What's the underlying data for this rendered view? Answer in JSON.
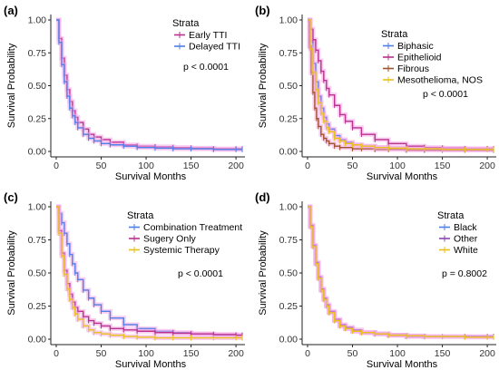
{
  "colors": {
    "blue": "#4f7fe8",
    "magenta": "#b8328e",
    "yellow": "#e8c21a",
    "brown": "#a0522d",
    "purple": "#8a44b0",
    "censor_tint": "#f4a6e6",
    "axis": "#222222"
  },
  "chart_data": [
    {
      "panel_label": "(a)",
      "type": "line",
      "xlabel": "Survival Months",
      "ylabel": "Survival Probability",
      "xlim": [
        0,
        210
      ],
      "ylim": [
        0,
        1
      ],
      "x_ticks": [
        "0",
        "50",
        "100",
        "150",
        "200"
      ],
      "y_ticks": [
        "0.00",
        "0.25",
        "0.50",
        "0.75",
        "1.00"
      ],
      "legend_title": "Strata",
      "legend_position": "top-right",
      "p_value": "p < 0.0001",
      "series": [
        {
          "name": "Early TTI",
          "color": "#b8328e",
          "x": [
            0,
            3,
            6,
            9,
            12,
            15,
            18,
            21,
            24,
            30,
            36,
            42,
            50,
            60,
            75,
            90,
            110,
            130,
            150,
            175,
            200,
            207
          ],
          "y": [
            1.0,
            0.86,
            0.71,
            0.58,
            0.47,
            0.38,
            0.31,
            0.26,
            0.22,
            0.17,
            0.13,
            0.11,
            0.09,
            0.07,
            0.05,
            0.04,
            0.035,
            0.03,
            0.025,
            0.02,
            0.02,
            0.02
          ]
        },
        {
          "name": "Delayed TTI",
          "color": "#4f7fe8",
          "x": [
            0,
            3,
            6,
            9,
            12,
            15,
            18,
            21,
            24,
            30,
            36,
            42,
            50,
            60,
            75,
            90,
            110,
            130,
            150,
            175,
            200,
            207
          ],
          "y": [
            1.0,
            0.83,
            0.66,
            0.53,
            0.42,
            0.33,
            0.27,
            0.22,
            0.18,
            0.13,
            0.1,
            0.08,
            0.06,
            0.05,
            0.04,
            0.03,
            0.025,
            0.02,
            0.02,
            0.015,
            0.015,
            0.015
          ]
        }
      ]
    },
    {
      "panel_label": "(b)",
      "type": "line",
      "xlabel": "Survival Months",
      "ylabel": "Survival Probability",
      "xlim": [
        0,
        210
      ],
      "ylim": [
        0,
        1
      ],
      "x_ticks": [
        "0",
        "50",
        "100",
        "150",
        "200"
      ],
      "y_ticks": [
        "0.00",
        "0.25",
        "0.50",
        "0.75",
        "1.00"
      ],
      "legend_title": "Strata",
      "legend_position": "top-right",
      "p_value": "p < 0.0001",
      "series": [
        {
          "name": "Biphasic",
          "color": "#4f7fe8",
          "x": [
            0,
            3,
            6,
            9,
            12,
            15,
            18,
            21,
            24,
            30,
            36,
            42,
            50,
            60,
            75,
            90,
            110,
            130,
            150,
            175,
            200,
            207
          ],
          "y": [
            1.0,
            0.84,
            0.67,
            0.53,
            0.42,
            0.33,
            0.26,
            0.21,
            0.17,
            0.12,
            0.09,
            0.07,
            0.05,
            0.04,
            0.03,
            0.025,
            0.02,
            0.02,
            0.02,
            0.02,
            0.02,
            0.02
          ]
        },
        {
          "name": "Epithelioid",
          "color": "#b8328e",
          "x": [
            0,
            3,
            6,
            9,
            12,
            15,
            18,
            21,
            24,
            30,
            36,
            42,
            50,
            60,
            75,
            90,
            110,
            130,
            150,
            175,
            200,
            207
          ],
          "y": [
            1.0,
            0.93,
            0.85,
            0.77,
            0.69,
            0.61,
            0.54,
            0.48,
            0.43,
            0.35,
            0.28,
            0.23,
            0.18,
            0.13,
            0.09,
            0.06,
            0.04,
            0.03,
            0.025,
            0.02,
            0.02,
            0.02
          ]
        },
        {
          "name": "Fibrous",
          "color": "#a0522d",
          "x": [
            0,
            2,
            4,
            6,
            8,
            10,
            12,
            15,
            18,
            21,
            24,
            30,
            36,
            50,
            60,
            75,
            90,
            110,
            130,
            150,
            175,
            207
          ],
          "y": [
            1.0,
            0.8,
            0.6,
            0.45,
            0.33,
            0.25,
            0.19,
            0.13,
            0.1,
            0.08,
            0.06,
            0.04,
            0.03,
            0.02,
            0.02,
            0.015,
            0.015,
            0.01,
            0.01,
            0.01,
            0.01,
            0.01
          ]
        },
        {
          "name": "Mesothelioma, NOS",
          "color": "#e8c21a",
          "x": [
            0,
            3,
            6,
            9,
            12,
            15,
            18,
            21,
            24,
            30,
            36,
            42,
            50,
            60,
            75,
            90,
            110,
            130,
            150,
            175,
            200,
            207
          ],
          "y": [
            1.0,
            0.78,
            0.6,
            0.47,
            0.37,
            0.29,
            0.23,
            0.18,
            0.15,
            0.1,
            0.08,
            0.06,
            0.05,
            0.04,
            0.03,
            0.025,
            0.02,
            0.02,
            0.015,
            0.015,
            0.015,
            0.015
          ]
        }
      ]
    },
    {
      "panel_label": "(c)",
      "type": "line",
      "xlabel": "Survival Months",
      "ylabel": "Survival Probability",
      "xlim": [
        0,
        210
      ],
      "ylim": [
        0,
        1
      ],
      "x_ticks": [
        "0",
        "50",
        "100",
        "150",
        "200"
      ],
      "y_ticks": [
        "0.00",
        "0.25",
        "0.50",
        "0.75",
        "1.00"
      ],
      "legend_title": "Strata",
      "legend_position": "top-right",
      "p_value": "p < 0.0001",
      "series": [
        {
          "name": "Combination Treatment",
          "color": "#4f7fe8",
          "x": [
            0,
            3,
            6,
            9,
            12,
            15,
            18,
            21,
            24,
            30,
            36,
            42,
            50,
            60,
            75,
            90,
            110,
            130,
            150,
            175,
            200,
            207
          ],
          "y": [
            1.0,
            0.95,
            0.88,
            0.8,
            0.72,
            0.64,
            0.57,
            0.5,
            0.45,
            0.37,
            0.31,
            0.26,
            0.21,
            0.16,
            0.11,
            0.08,
            0.06,
            0.05,
            0.04,
            0.035,
            0.03,
            0.03
          ]
        },
        {
          "name": "Sugery Only",
          "color": "#b8328e",
          "x": [
            0,
            3,
            6,
            9,
            12,
            15,
            18,
            21,
            24,
            30,
            36,
            42,
            50,
            60,
            75,
            90,
            110,
            130,
            150,
            175,
            200,
            207
          ],
          "y": [
            1.0,
            0.82,
            0.65,
            0.52,
            0.42,
            0.34,
            0.28,
            0.24,
            0.21,
            0.17,
            0.14,
            0.12,
            0.1,
            0.08,
            0.07,
            0.06,
            0.05,
            0.045,
            0.04,
            0.035,
            0.03,
            0.03
          ]
        },
        {
          "name": "Systemic Therapy",
          "color": "#e8c21a",
          "x": [
            0,
            3,
            6,
            9,
            12,
            15,
            18,
            21,
            24,
            30,
            36,
            42,
            50,
            60,
            75,
            90,
            110,
            130,
            150,
            175,
            200,
            207
          ],
          "y": [
            1.0,
            0.8,
            0.63,
            0.49,
            0.38,
            0.3,
            0.24,
            0.19,
            0.15,
            0.1,
            0.07,
            0.05,
            0.04,
            0.03,
            0.02,
            0.015,
            0.01,
            0.01,
            0.01,
            0.01,
            0.01,
            0.01
          ]
        }
      ]
    },
    {
      "panel_label": "(d)",
      "type": "line",
      "xlabel": "Survival Months",
      "ylabel": "Survival Probability",
      "xlim": [
        0,
        210
      ],
      "ylim": [
        0,
        1
      ],
      "x_ticks": [
        "0",
        "50",
        "100",
        "150",
        "200"
      ],
      "y_ticks": [
        "0.00",
        "0.25",
        "0.50",
        "0.75",
        "1.00"
      ],
      "legend_title": "Strata",
      "legend_position": "top-right",
      "p_value": "p = 0.8002",
      "series": [
        {
          "name": "Black",
          "color": "#4f7fe8",
          "x": [
            0,
            3,
            6,
            9,
            12,
            15,
            18,
            21,
            24,
            30,
            36,
            42,
            50,
            60,
            75,
            90,
            110,
            130
          ],
          "y": [
            1.0,
            0.85,
            0.7,
            0.57,
            0.46,
            0.37,
            0.3,
            0.25,
            0.2,
            0.14,
            0.1,
            0.08,
            0.06,
            0.05,
            0.04,
            0.03,
            0.02,
            0.02
          ]
        },
        {
          "name": "Other",
          "color": "#8a44b0",
          "x": [
            0,
            3,
            6,
            9,
            12,
            15,
            18,
            21,
            24,
            30,
            36,
            42,
            50,
            60,
            75,
            90,
            110,
            130,
            150,
            175,
            200,
            207
          ],
          "y": [
            1.0,
            0.86,
            0.71,
            0.58,
            0.47,
            0.38,
            0.31,
            0.26,
            0.21,
            0.15,
            0.11,
            0.09,
            0.07,
            0.05,
            0.04,
            0.03,
            0.025,
            0.02,
            0.02,
            0.02,
            0.02,
            0.02
          ]
        },
        {
          "name": "White",
          "color": "#e8c21a",
          "x": [
            0,
            3,
            6,
            9,
            12,
            15,
            18,
            21,
            24,
            30,
            36,
            42,
            50,
            60,
            75,
            90,
            110,
            130,
            150,
            175,
            200,
            207
          ],
          "y": [
            1.0,
            0.85,
            0.7,
            0.57,
            0.46,
            0.37,
            0.3,
            0.25,
            0.2,
            0.14,
            0.1,
            0.08,
            0.06,
            0.05,
            0.04,
            0.03,
            0.025,
            0.02,
            0.02,
            0.015,
            0.015,
            0.015
          ]
        }
      ]
    }
  ]
}
